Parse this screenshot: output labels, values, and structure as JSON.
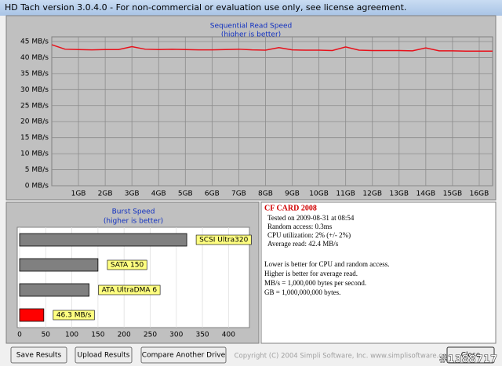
{
  "window": {
    "title": "HD Tach version 3.0.4.0  - For non-commercial or evaluation use only, see license agreement."
  },
  "chart_data": [
    {
      "type": "line",
      "title": "Sequential Read Speed",
      "subtitle": "(higher is better)",
      "x": [
        0,
        0.5,
        1,
        1.5,
        2,
        2.5,
        3,
        3.5,
        4,
        4.5,
        5,
        5.5,
        6,
        6.5,
        7,
        7.5,
        8,
        8.5,
        9,
        9.5,
        10,
        10.5,
        11,
        11.5,
        12,
        12.5,
        13,
        13.5,
        14,
        14.5,
        15,
        15.5,
        16,
        16.5
      ],
      "series": [
        {
          "color": "#e8101a",
          "values": [
            44.0,
            42.6,
            42.5,
            42.4,
            42.5,
            42.5,
            43.4,
            42.6,
            42.5,
            42.6,
            42.5,
            42.4,
            42.4,
            42.5,
            42.6,
            42.4,
            42.3,
            43.1,
            42.4,
            42.3,
            42.3,
            42.2,
            43.3,
            42.3,
            42.2,
            42.2,
            42.2,
            42.1,
            43.0,
            42.1,
            42.1,
            42.0,
            42.0,
            42.0
          ]
        }
      ],
      "xlim": [
        0,
        16.5
      ],
      "xticks": [
        {
          "value": 1,
          "label": "1GB"
        },
        {
          "value": 2,
          "label": "2GB"
        },
        {
          "value": 3,
          "label": "3GB"
        },
        {
          "value": 4,
          "label": "4GB"
        },
        {
          "value": 5,
          "label": "5GB"
        },
        {
          "value": 6,
          "label": "6GB"
        },
        {
          "value": 7,
          "label": "7GB"
        },
        {
          "value": 8,
          "label": "8GB"
        },
        {
          "value": 9,
          "label": "9GB"
        },
        {
          "value": 10,
          "label": "10GB"
        },
        {
          "value": 11,
          "label": "11GB"
        },
        {
          "value": 12,
          "label": "12GB"
        },
        {
          "value": 13,
          "label": "13GB"
        },
        {
          "value": 14,
          "label": "14GB"
        },
        {
          "value": 15,
          "label": "15GB"
        },
        {
          "value": 16,
          "label": "16GB"
        }
      ],
      "ylim": [
        0,
        45
      ],
      "yticks": [
        {
          "value": 0,
          "label": "0 MB/s"
        },
        {
          "value": 5,
          "label": "5 MB/s"
        },
        {
          "value": 10,
          "label": "10 MB/s"
        },
        {
          "value": 15,
          "label": "15 MB/s"
        },
        {
          "value": 20,
          "label": "20 MB/s"
        },
        {
          "value": 25,
          "label": "25 MB/s"
        },
        {
          "value": 30,
          "label": "30 MB/s"
        },
        {
          "value": 35,
          "label": "35 MB/s"
        },
        {
          "value": 40,
          "label": "40 MB/s"
        },
        {
          "value": 45,
          "label": "45 MB/s"
        }
      ],
      "grid": true
    },
    {
      "type": "hbar",
      "title": "Burst Speed",
      "subtitle": "(higher is better)",
      "categories": [
        "SCSI Ultra320",
        "SATA 150",
        "ATA UltraDMA 6",
        null
      ],
      "values": [
        320,
        150,
        133,
        46.3
      ],
      "value_labels": [
        null,
        null,
        null,
        "46.3 MB/s"
      ],
      "colors": [
        "#808080",
        "#808080",
        "#808080",
        "#ff0000"
      ],
      "xlim": [
        0,
        440
      ],
      "xticks": [
        0,
        50,
        100,
        150,
        200,
        250,
        300,
        350,
        400
      ],
      "grid": true
    }
  ],
  "info": {
    "drive": "CF CARD 2008",
    "stats": [
      "Tested on 2009-08-31 at 08:54",
      "Random access: 0.3ms",
      "CPU utilization: 2% (+/- 2%)",
      "Average read: 42.4 MB/s"
    ],
    "notes": [
      "Lower is better for CPU and random access.",
      "Higher is better for average read.",
      "MB/s = 1,000,000 bytes per second.",
      "GB = 1,000,000,000 bytes."
    ]
  },
  "buttons": {
    "save": "Save Results",
    "upload": "Upload Results",
    "compare": "Compare Another Drive",
    "close": "Close"
  },
  "footer": {
    "copyright": "Copyright (C) 2004 Simpli Software, Inc. www.simplisoftware.com",
    "watermark": "#1388717"
  }
}
